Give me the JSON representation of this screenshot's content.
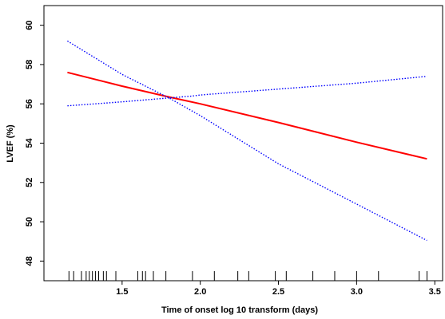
{
  "chart_data": {
    "type": "line",
    "title": "",
    "xlabel": "Time of onset log 10 transform (days)",
    "ylabel": "LVEF (%)",
    "xlim": [
      1.0,
      3.55
    ],
    "ylim": [
      47,
      61
    ],
    "xticks": [
      1.5,
      2.0,
      2.5,
      3.0,
      3.5
    ],
    "xtick_labels": [
      "1.5",
      "2.0",
      "2.5",
      "3.0",
      "3.5"
    ],
    "yticks": [
      48,
      50,
      52,
      54,
      56,
      58,
      60
    ],
    "ytick_labels": [
      "48",
      "50",
      "52",
      "54",
      "56",
      "58",
      "60"
    ],
    "grid": false,
    "series": [
      {
        "role": "estimate",
        "color": "#ff0000",
        "style": "solid",
        "x": [
          1.15,
          1.5,
          1.8,
          2.0,
          2.5,
          3.0,
          3.45
        ],
        "y": [
          57.6,
          56.9,
          56.35,
          56.0,
          55.05,
          54.05,
          53.2
        ]
      },
      {
        "role": "upper-ci",
        "color": "#0000ff",
        "style": "dotted",
        "x": [
          1.15,
          1.5,
          1.8,
          1.95,
          2.0,
          2.5,
          3.0,
          3.45
        ],
        "y": [
          55.9,
          56.1,
          56.3,
          56.4,
          56.45,
          56.75,
          57.05,
          57.4
        ]
      },
      {
        "role": "lower-ci",
        "color": "#0000ff",
        "style": "dotted",
        "x": [
          1.15,
          1.5,
          1.8,
          2.0,
          2.5,
          3.0,
          3.45
        ],
        "y": [
          59.2,
          57.5,
          56.3,
          55.4,
          52.95,
          50.9,
          49.05
        ]
      }
    ],
    "rug": [
      1.16,
      1.19,
      1.24,
      1.27,
      1.29,
      1.31,
      1.33,
      1.35,
      1.38,
      1.4,
      1.46,
      1.6,
      1.63,
      1.65,
      1.7,
      1.78,
      1.95,
      2.09,
      2.24,
      2.31,
      2.48,
      2.55,
      2.72,
      2.86,
      3.0,
      3.14,
      3.4,
      3.45
    ]
  }
}
